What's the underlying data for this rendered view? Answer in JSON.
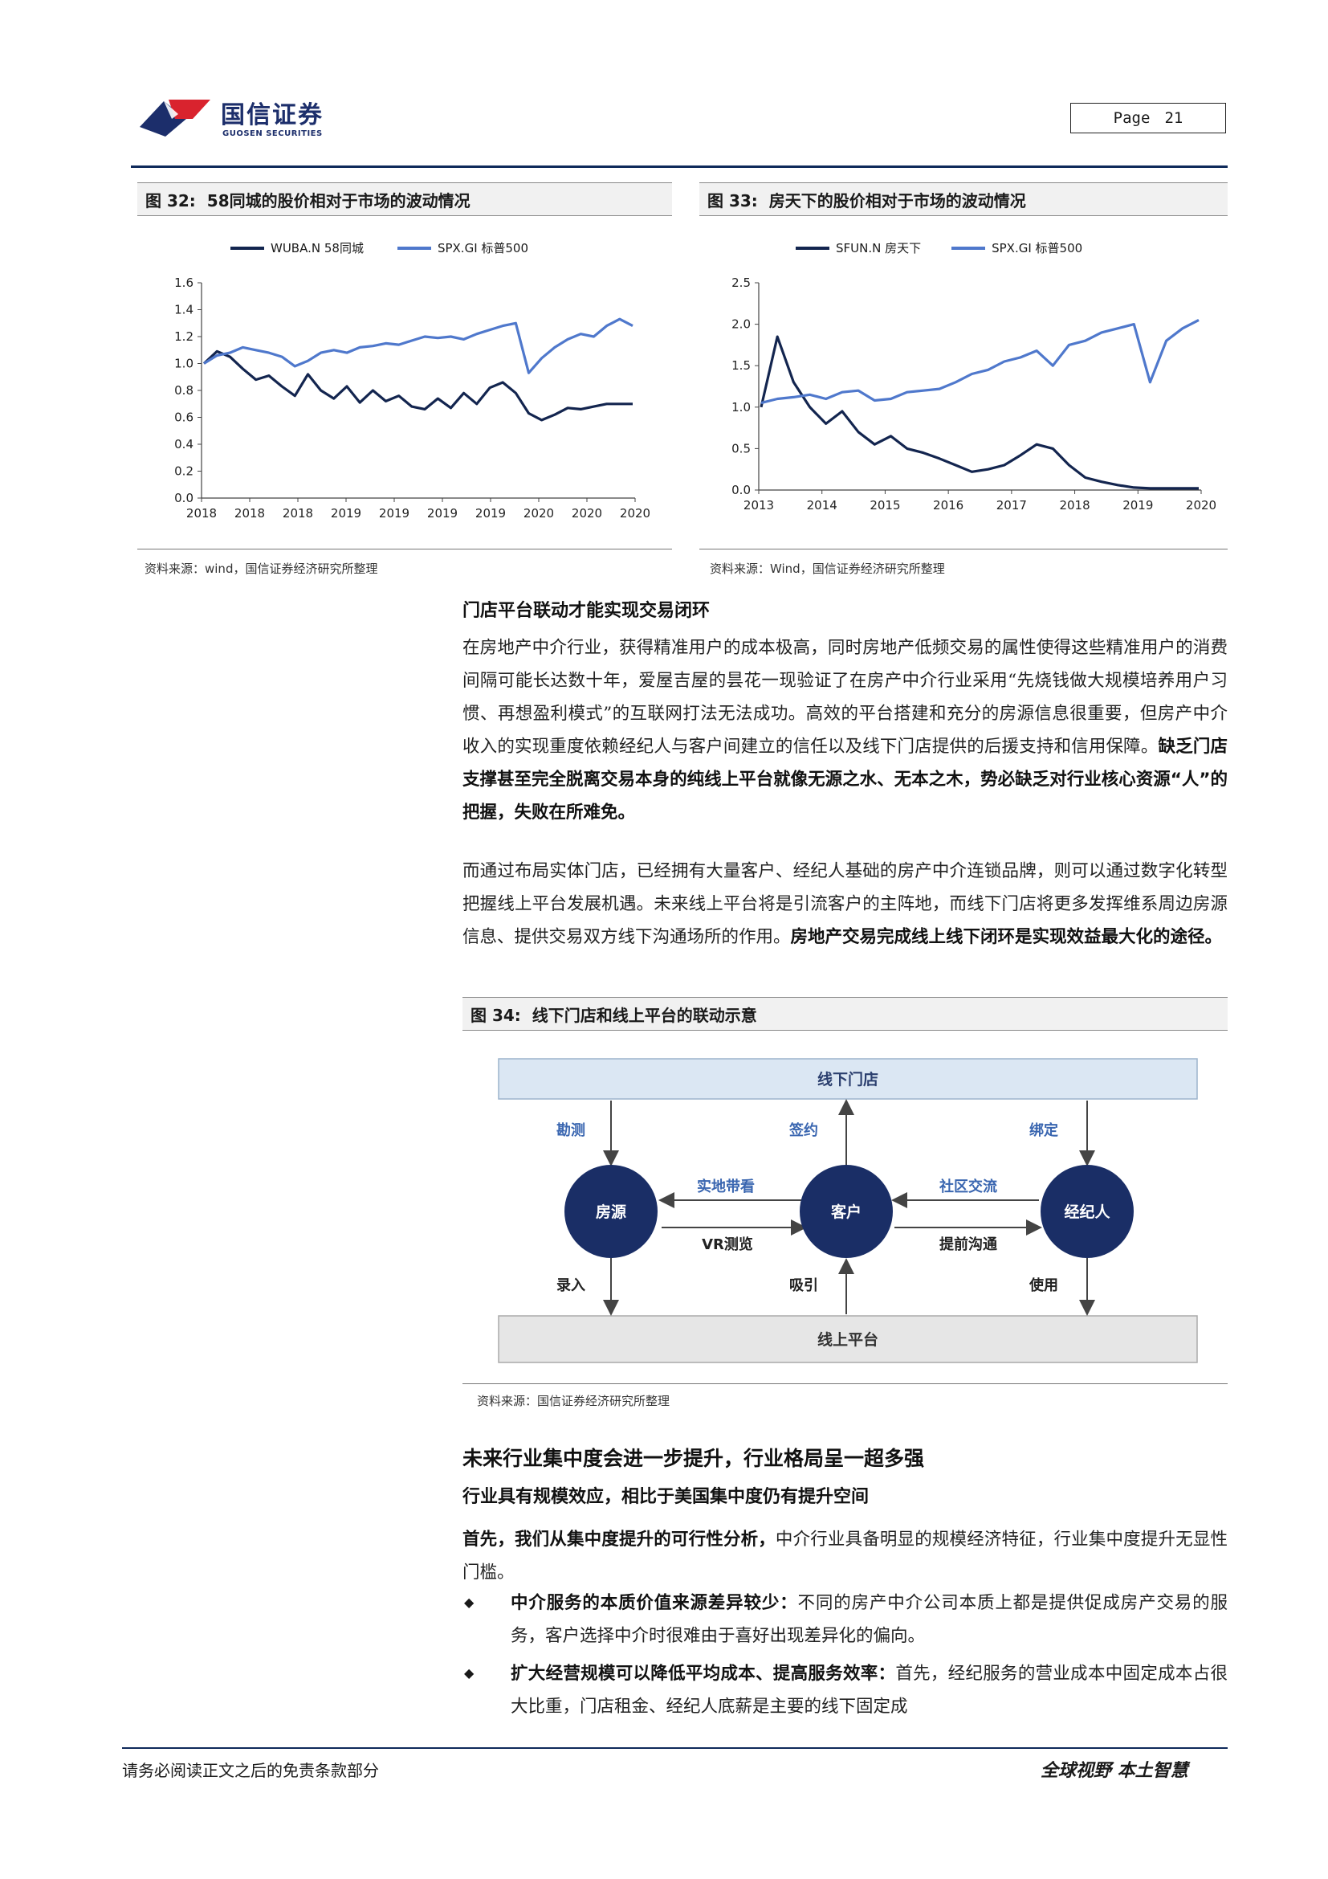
{
  "header": {
    "brand_cn": "国信证券",
    "brand_en": "GUOSEN SECURITIES",
    "page_label": "Page",
    "page_number": "21",
    "colors": {
      "brand_navy": "#1c2e6b",
      "brand_red": "#d9232e",
      "rule": "#0f2a5a"
    }
  },
  "fig32": {
    "num": "图 32:",
    "title": "58同城的股价相对于市场的波动情况",
    "source": "资料来源：wind，国信证券经济研究所整理",
    "chart_data": {
      "type": "line",
      "series": [
        {
          "name": "WUBA.N 58同城",
          "color": "#13254f",
          "values": [
            1.0,
            1.09,
            1.05,
            0.96,
            0.88,
            0.91,
            0.83,
            0.76,
            0.92,
            0.8,
            0.74,
            0.83,
            0.71,
            0.8,
            0.72,
            0.76,
            0.68,
            0.66,
            0.74,
            0.67,
            0.78,
            0.7,
            0.82,
            0.86,
            0.78,
            0.63,
            0.58,
            0.62,
            0.67,
            0.66,
            0.68,
            0.7,
            0.7,
            0.7
          ]
        },
        {
          "name": "SPX.GI 标普500",
          "color": "#4f78cc",
          "values": [
            1.0,
            1.06,
            1.08,
            1.12,
            1.1,
            1.08,
            1.05,
            0.98,
            1.02,
            1.08,
            1.1,
            1.08,
            1.12,
            1.13,
            1.15,
            1.14,
            1.17,
            1.2,
            1.19,
            1.2,
            1.18,
            1.22,
            1.25,
            1.28,
            1.3,
            0.93,
            1.04,
            1.12,
            1.18,
            1.22,
            1.2,
            1.28,
            1.33,
            1.28
          ]
        }
      ],
      "y_ticks": [
        "1.6",
        "1.4",
        "1.2",
        "1.0",
        "0.8",
        "0.6",
        "0.4",
        "0.2",
        "0.0"
      ],
      "x_ticks": [
        "2018",
        "2018",
        "2018",
        "2019",
        "2019",
        "2019",
        "2019",
        "2020",
        "2020",
        "2020"
      ],
      "ylim": [
        0,
        1.6
      ],
      "legend_position": "top"
    }
  },
  "fig33": {
    "num": "图 33:",
    "title": "房天下的股价相对于市场的波动情况",
    "source": "资料来源：Wind，国信证券经济研究所整理",
    "chart_data": {
      "type": "line",
      "series": [
        {
          "name": "SFUN.N 房天下",
          "color": "#13254f",
          "values": [
            1.0,
            1.85,
            1.3,
            1.0,
            0.8,
            0.95,
            0.7,
            0.55,
            0.65,
            0.5,
            0.45,
            0.38,
            0.3,
            0.22,
            0.25,
            0.3,
            0.42,
            0.55,
            0.5,
            0.3,
            0.15,
            0.1,
            0.06,
            0.03,
            0.02,
            0.02,
            0.02,
            0.02
          ]
        },
        {
          "name": "SPX.GI 标普500",
          "color": "#4f78cc",
          "values": [
            1.05,
            1.1,
            1.12,
            1.15,
            1.1,
            1.18,
            1.2,
            1.08,
            1.1,
            1.18,
            1.2,
            1.22,
            1.3,
            1.4,
            1.45,
            1.55,
            1.6,
            1.68,
            1.5,
            1.75,
            1.8,
            1.9,
            1.95,
            2.0,
            1.3,
            1.8,
            1.95,
            2.05
          ]
        }
      ],
      "y_ticks": [
        "2.5",
        "2.0",
        "1.5",
        "1.0",
        "0.5",
        "0.0"
      ],
      "x_ticks": [
        "2013",
        "2014",
        "2015",
        "2016",
        "2017",
        "2018",
        "2019",
        "2020"
      ],
      "ylim": [
        0,
        2.5
      ],
      "legend_position": "top"
    }
  },
  "section1": {
    "heading": "门店平台联动才能实现交易闭环",
    "p1_normal": "在房地产中介行业，获得精准用户的成本极高，同时房地产低频交易的属性使得这些精准用户的消费间隔可能长达数十年，爱屋吉屋的昙花一现验证了在房产中介行业采用“先烧钱做大规模培养用户习惯、再想盈利模式”的互联网打法无法成功。高效的平台搭建和充分的房源信息很重要，但房产中介收入的实现重度依赖经纪人与客户间建立的信任以及线下门店提供的后援支持和信用保障。",
    "p1_bold": "缺乏门店支撑甚至完全脱离交易本身的纯线上平台就像无源之水、无本之木，势必缺乏对行业核心资源“人”的把握，失败在所难免。",
    "p2_normal": "而通过布局实体门店，已经拥有大量客户、经纪人基础的房产中介连锁品牌，则可以通过数字化转型把握线上平台发展机遇。未来线上平台将是引流客户的主阵地，而线下门店将更多发挥维系周边房源信息、提供交易双方线下沟通场所的作用。",
    "p2_bold": "房地产交易完成线上线下闭环是实现效益最大化的途径。"
  },
  "fig34": {
    "num": "图 34:",
    "title": "线下门店和线上平台的联动示意",
    "source": "资料来源：国信证券经济研究所整理",
    "offline_store": "线下门店",
    "online_platform": "线上平台",
    "node_listing": "房源",
    "node_customer": "客户",
    "node_agent": "经纪人",
    "lbl_survey": "勘测",
    "lbl_sign": "签约",
    "lbl_bind": "绑定",
    "lbl_viewing": "实地带看",
    "lbl_community": "社区交流",
    "lbl_vr": "VR测览",
    "lbl_communicate": "提前沟通",
    "lbl_input": "录入",
    "lbl_attract": "吸引",
    "lbl_use": "使用"
  },
  "section2": {
    "heading": "未来行业集中度会进一步提升，行业格局呈一超多强",
    "subheading": "行业具有规模效应，相比于美国集中度仍有提升空间",
    "p3_bold": "首先，我们从集中度提升的可行性分析，",
    "p3_normal": "中介行业具备明显的规模经济特征，行业集中度提升无显性门槛。",
    "bullet_glyph": "◆",
    "b1_bold": "中介服务的本质价值来源差异较少：",
    "b1_normal": "不同的房产中介公司本质上都是提供促成房产交易的服务，客户选择中介时很难由于喜好出现差异化的偏向。",
    "b2_bold": "扩大经营规模可以降低平均成本、提高服务效率：",
    "b2_normal": "首先，经纪服务的营业成本中固定成本占很大比重，门店租金、经纪人底薪是主要的线下固定成"
  },
  "footer": {
    "left": "请务必阅读正文之后的免责条款部分",
    "right": "全球视野  本土智慧"
  }
}
